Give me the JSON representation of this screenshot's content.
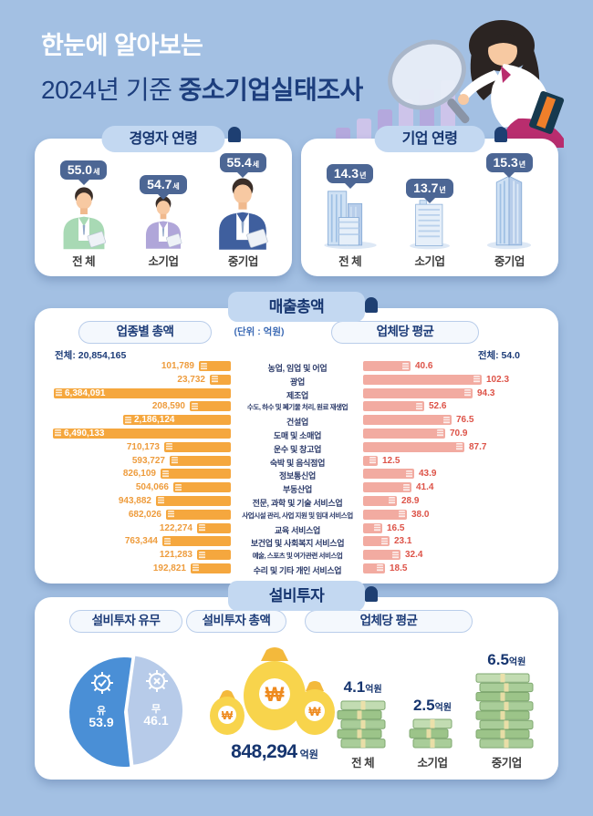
{
  "colors": {
    "background": "#a3c0e3",
    "navy": "#16356f",
    "bubble": "#4c6694",
    "orange_bar": "#f5a73e",
    "orange_text": "#ee9c3d",
    "pink_bar": "#f2aba1",
    "red_text": "#dd5348",
    "pie_yes": "#4a8fd6",
    "pie_no": "#b7cbe9"
  },
  "header": {
    "line1": "한눈에 알아보는",
    "line2_prefix": "2024년 기준 ",
    "line2_bold": "중소기업실태조사"
  },
  "ceo_age": {
    "title": "경영자 연령",
    "items": [
      {
        "label": "전 체",
        "value": "55.0",
        "unit": "세"
      },
      {
        "label": "소기업",
        "value": "54.7",
        "unit": "세"
      },
      {
        "label": "중기업",
        "value": "55.4",
        "unit": "세"
      }
    ]
  },
  "firm_age": {
    "title": "기업 연령",
    "items": [
      {
        "label": "전 체",
        "value": "14.3",
        "unit": "년"
      },
      {
        "label": "소기업",
        "value": "13.7",
        "unit": "년"
      },
      {
        "label": "중기업",
        "value": "15.3",
        "unit": "년"
      }
    ]
  },
  "sales": {
    "title": "매출총액",
    "left_header": "업종별 총액",
    "unit_note": "(단위 : 억원)",
    "right_header": "업체당 평균",
    "left_total_label": "전체: 20,854,165",
    "right_total_label": "전체: 54.0",
    "rows": [
      {
        "category": "농업, 임업 및 어업",
        "total": 101789,
        "total_label": "101,789",
        "avg": 40.6,
        "avg_label": "40.6"
      },
      {
        "category": "광업",
        "total": 23732,
        "total_label": "23,732",
        "avg": 102.3,
        "avg_label": "102.3"
      },
      {
        "category": "제조업",
        "total": 6384091,
        "total_label": "6,384,091",
        "avg": 94.3,
        "avg_label": "94.3"
      },
      {
        "category": "수도, 하수 및 폐기물 처리, 원료 재생업",
        "total": 208590,
        "total_label": "208,590",
        "avg": 52.6,
        "avg_label": "52.6"
      },
      {
        "category": "건설업",
        "total": 2186124,
        "total_label": "2,186,124",
        "avg": 76.5,
        "avg_label": "76.5"
      },
      {
        "category": "도매 및 소매업",
        "total": 6490133,
        "total_label": "6,490,133",
        "avg": 70.9,
        "avg_label": "70.9"
      },
      {
        "category": "운수 및 창고업",
        "total": 710173,
        "total_label": "710,173",
        "avg": 87.7,
        "avg_label": "87.7"
      },
      {
        "category": "숙박 및 음식점업",
        "total": 593727,
        "total_label": "593,727",
        "avg": 12.5,
        "avg_label": "12.5"
      },
      {
        "category": "정보통신업",
        "total": 826109,
        "total_label": "826,109",
        "avg": 43.9,
        "avg_label": "43.9"
      },
      {
        "category": "부동산업",
        "total": 504066,
        "total_label": "504,066",
        "avg": 41.4,
        "avg_label": "41.4"
      },
      {
        "category": "전문, 과학 및 기술 서비스업",
        "total": 943882,
        "total_label": "943,882",
        "avg": 28.9,
        "avg_label": "28.9"
      },
      {
        "category": "사업시설 관리, 사업 지원 및 임대 서비스업",
        "total": 682026,
        "total_label": "682,026",
        "avg": 38.0,
        "avg_label": "38.0"
      },
      {
        "category": "교육 서비스업",
        "total": 122274,
        "total_label": "122,274",
        "avg": 16.5,
        "avg_label": "16.5"
      },
      {
        "category": "보건업 및 사회복지 서비스업",
        "total": 763344,
        "total_label": "763,344",
        "avg": 23.1,
        "avg_label": "23.1"
      },
      {
        "category": "예술, 스포츠 및 여가관련 서비스업",
        "total": 121283,
        "total_label": "121,283",
        "avg": 32.4,
        "avg_label": "32.4"
      },
      {
        "category": "수리 및 기타 개인 서비스업",
        "total": 192821,
        "total_label": "192,821",
        "avg": 18.5,
        "avg_label": "18.5"
      }
    ]
  },
  "investment": {
    "title": "설비투자",
    "pie_header": "설비투자 유무",
    "pie": {
      "yes_label": "유",
      "yes_value": "53.9",
      "no_label": "무",
      "no_value": "46.1"
    },
    "total_header": "설비투자 총액",
    "total_value": "848,294",
    "total_unit": "억원",
    "avg_header": "업체당 평균",
    "avg_items": [
      {
        "label": "전 체",
        "value": "4.1",
        "unit": "억원",
        "num": 4.1
      },
      {
        "label": "소기업",
        "value": "2.5",
        "unit": "억원",
        "num": 2.5
      },
      {
        "label": "중기업",
        "value": "6.5",
        "unit": "억원",
        "num": 6.5
      }
    ]
  },
  "chart_data": [
    {
      "type": "bar",
      "title": "매출총액 - 업종별 총액",
      "ylabel": "억원",
      "total": 20854165,
      "categories": [
        "농업, 임업 및 어업",
        "광업",
        "제조업",
        "수도, 하수 및 폐기물 처리, 원료 재생업",
        "건설업",
        "도매 및 소매업",
        "운수 및 창고업",
        "숙박 및 음식점업",
        "정보통신업",
        "부동산업",
        "전문, 과학 및 기술 서비스업",
        "사업시설 관리, 사업 지원 및 임대 서비스업",
        "교육 서비스업",
        "보건업 및 사회복지 서비스업",
        "예술, 스포츠 및 여가관련 서비스업",
        "수리 및 기타 개인 서비스업"
      ],
      "values": [
        101789,
        23732,
        6384091,
        208590,
        2186124,
        6490133,
        710173,
        593727,
        826109,
        504066,
        943882,
        682026,
        122274,
        763344,
        121283,
        192821
      ]
    },
    {
      "type": "bar",
      "title": "매출총액 - 업체당 평균",
      "ylabel": "억원",
      "total": 54.0,
      "categories": [
        "농업, 임업 및 어업",
        "광업",
        "제조업",
        "수도, 하수 및 폐기물 처리, 원료 재생업",
        "건설업",
        "도매 및 소매업",
        "운수 및 창고업",
        "숙박 및 음식점업",
        "정보통신업",
        "부동산업",
        "전문, 과학 및 기술 서비스업",
        "사업시설 관리, 사업 지원 및 임대 서비스업",
        "교육 서비스업",
        "보건업 및 사회복지 서비스업",
        "예술, 스포츠 및 여가관련 서비스업",
        "수리 및 기타 개인 서비스업"
      ],
      "values": [
        40.6,
        102.3,
        94.3,
        52.6,
        76.5,
        70.9,
        87.7,
        12.5,
        43.9,
        41.4,
        28.9,
        38.0,
        16.5,
        23.1,
        32.4,
        18.5
      ]
    },
    {
      "type": "pie",
      "title": "설비투자 유무",
      "labels": [
        "유",
        "무"
      ],
      "values": [
        53.9,
        46.1
      ]
    },
    {
      "type": "bar",
      "title": "설비투자 업체당 평균",
      "ylabel": "억원",
      "categories": [
        "전체",
        "소기업",
        "중기업"
      ],
      "values": [
        4.1,
        2.5,
        6.5
      ]
    },
    {
      "type": "bar",
      "title": "경영자 연령(세)",
      "categories": [
        "전체",
        "소기업",
        "중기업"
      ],
      "values": [
        55.0,
        54.7,
        55.4
      ]
    },
    {
      "type": "bar",
      "title": "기업 연령(년)",
      "categories": [
        "전체",
        "소기업",
        "중기업"
      ],
      "values": [
        14.3,
        13.7,
        15.3
      ]
    }
  ]
}
